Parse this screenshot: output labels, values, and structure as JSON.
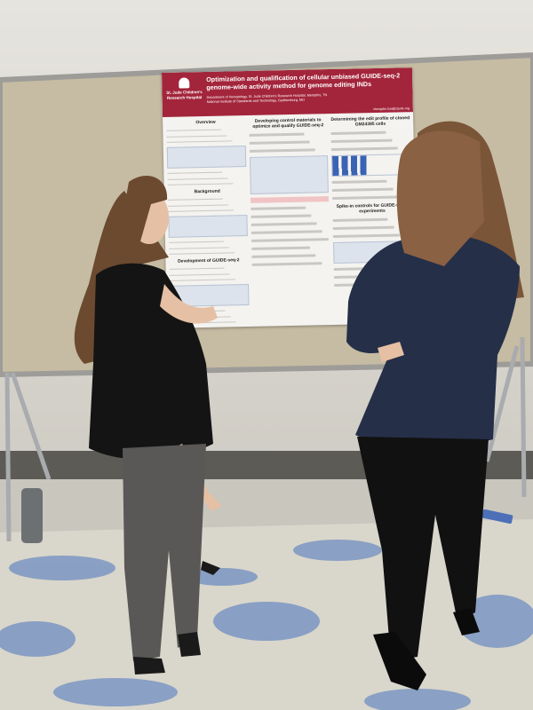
{
  "poster": {
    "logo": [
      "St. Jude Children's",
      "Research Hospital"
    ],
    "title": [
      "Optimization and qualification of cellular unbiased GUIDE-seq-2",
      "genome-wide activity method for genome editing INDs"
    ],
    "affiliations": [
      "Department of Hematology, St. Jude Children's Research Hospital, Memphis, TN",
      "National Institute of Standards and Technology, Gaithersburg, MD"
    ],
    "email": "shengdar.tsai@stjude.org",
    "columns": [
      [
        "Overview",
        "Background",
        "Development of GUIDE-seq-2"
      ],
      [
        "Developing control materials to optimize and qualify GUIDE-seq-2"
      ],
      [
        "Determining the edit profile of cloned GM24385 cells",
        "Spike-in controls for GUIDE-seq-2 experiments"
      ]
    ]
  }
}
